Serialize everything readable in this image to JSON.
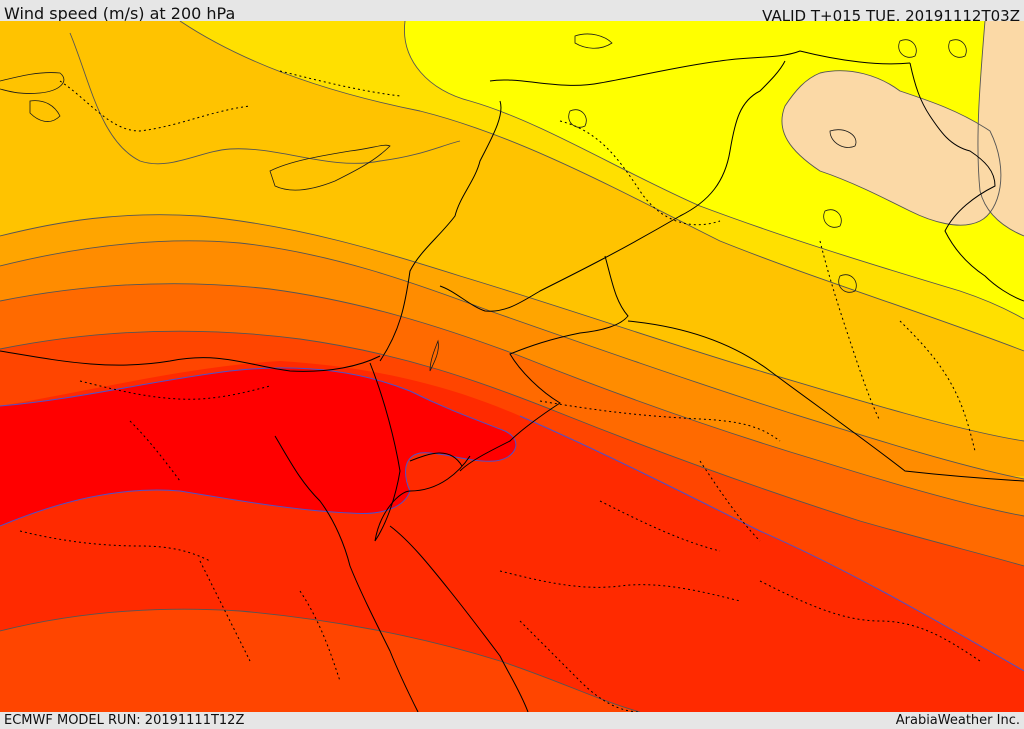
{
  "header": {
    "title": "Wind speed (m/s) at 200 hPa",
    "valid_time": "VALID T+015 TUE. 20191112T03Z"
  },
  "footer": {
    "model_run": "ECMWF MODEL RUN: 20191111T12Z",
    "credit": "ArabiaWeather Inc."
  },
  "map": {
    "field": "wind speed at 200 hPa",
    "colors": {
      "very_pale": "#fbd9a6",
      "yellow": "#ffff00",
      "gold": "#ffe000",
      "amber": "#ffc300",
      "light_orange": "#ffa500",
      "orange": "#ff8c00",
      "dark_orange": "#ff6a00",
      "orange_red": "#ff4500",
      "red_orange": "#ff2a00",
      "red": "#ff0000",
      "contour": "#555555",
      "boundary": "#000000",
      "inner_contour": "#5050c8"
    }
  }
}
